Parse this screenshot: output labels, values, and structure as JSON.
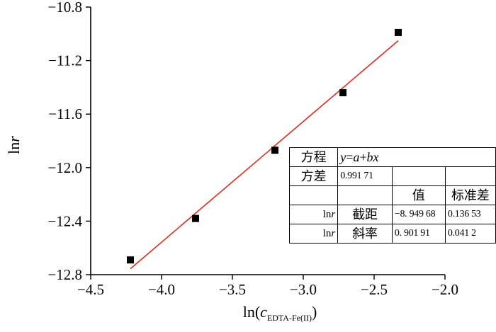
{
  "chart_data": {
    "type": "scatter",
    "title": "",
    "xlabel_prefix": "ln(",
    "xlabel_var": "c",
    "xlabel_sub": "EDTA-Fe(II)",
    "xlabel_suffix": ")",
    "ylabel_prefix": "ln",
    "ylabel_var": "r",
    "xlim": [
      -4.5,
      -2.0
    ],
    "ylim": [
      -12.8,
      -10.8
    ],
    "x_ticks": [
      -4.5,
      -4.0,
      -3.5,
      -3.0,
      -2.5,
      -2.0
    ],
    "x_tick_labels": [
      "−4.5",
      "−4.0",
      "−3.5",
      "−3.0",
      "−2.5",
      "−2.0"
    ],
    "y_ticks": [
      -12.8,
      -12.4,
      -12.0,
      -11.6,
      -11.2,
      -10.8
    ],
    "y_tick_labels": [
      "−12.8",
      "−12.4",
      "−12.0",
      "−11.6",
      "−11.2",
      "−10.8"
    ],
    "series": [
      {
        "x": [
          -4.22,
          -3.76,
          -3.2,
          -2.72,
          -2.33
        ],
        "y": [
          -12.69,
          -12.38,
          -11.87,
          -11.44,
          -10.99
        ],
        "marker": "square",
        "color": "#000000"
      }
    ],
    "fit_line": {
      "intercept": -8.94968,
      "slope": 0.90191,
      "x_range": [
        -4.22,
        -2.33
      ],
      "color": "#e8281c"
    },
    "grid": false,
    "legend": "none"
  },
  "fit_table": {
    "equation_label": "方程",
    "equation_prefix": "y",
    "equation_mid": "=",
    "equation_a": "a",
    "equation_plus": "+",
    "equation_bx": "bx",
    "variance_label": "方差",
    "variance_value": "0.991 71",
    "col_value": "值",
    "col_stderr": "标准差",
    "row_var_prefix": "ln",
    "row_var_italic": "r",
    "intercept_label": "截距",
    "intercept_value": "−8. 949 68",
    "intercept_stderr": "0.136 53",
    "slope_label": "斜率",
    "slope_value": "0. 901 91",
    "slope_stderr": "0.041 2"
  }
}
